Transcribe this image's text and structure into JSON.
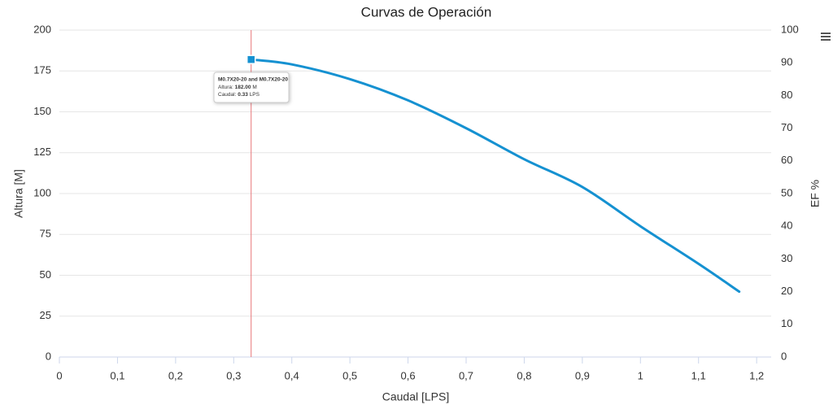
{
  "chart_data": {
    "type": "line",
    "title": "Curvas de Operación",
    "x_label": "Caudal [LPS]",
    "y_label": "Altura [M]",
    "y2_label": "EF %",
    "xlim": [
      0,
      1.225
    ],
    "xticks": [
      0,
      {
        "value": 0.1,
        "label": "0,1"
      },
      {
        "value": 0.2,
        "label": "0,2"
      },
      {
        "value": 0.3,
        "label": "0,3"
      },
      {
        "value": 0.4,
        "label": "0,4"
      },
      {
        "value": 0.5,
        "label": "0,5"
      },
      {
        "value": 0.6,
        "label": "0,6"
      },
      {
        "value": 0.7,
        "label": "0,7"
      },
      {
        "value": 0.8,
        "label": "0,8"
      },
      {
        "value": 0.9,
        "label": "0,9"
      },
      1,
      {
        "value": 1.1,
        "label": "1,1"
      },
      {
        "value": 1.2,
        "label": "1,2"
      }
    ],
    "ylim": [
      0,
      200
    ],
    "yticks": [
      0,
      25,
      50,
      75,
      100,
      125,
      150,
      175,
      200
    ],
    "y2lim": [
      0,
      100
    ],
    "y2ticks": [
      0,
      10,
      20,
      30,
      40,
      50,
      60,
      70,
      80,
      90,
      100
    ],
    "grid": true,
    "series": [
      {
        "name": "M0.7X20-20",
        "color": "#1591d1",
        "x": [
          0.33,
          0.4,
          0.5,
          0.6,
          0.7,
          0.8,
          0.9,
          1.0,
          1.1,
          1.17
        ],
        "values": [
          182,
          179,
          170,
          157,
          140,
          121,
          104,
          80,
          57,
          40
        ]
      }
    ],
    "tooltip": {
      "title": "M0.7X20-20 and M0.7X20-20",
      "altura_label": "Altura:",
      "altura_value": "182.00",
      "altura_unit": "M",
      "caudal_label": "Caudal:",
      "caudal_value": "0.33",
      "caudal_unit": "LPS"
    }
  }
}
